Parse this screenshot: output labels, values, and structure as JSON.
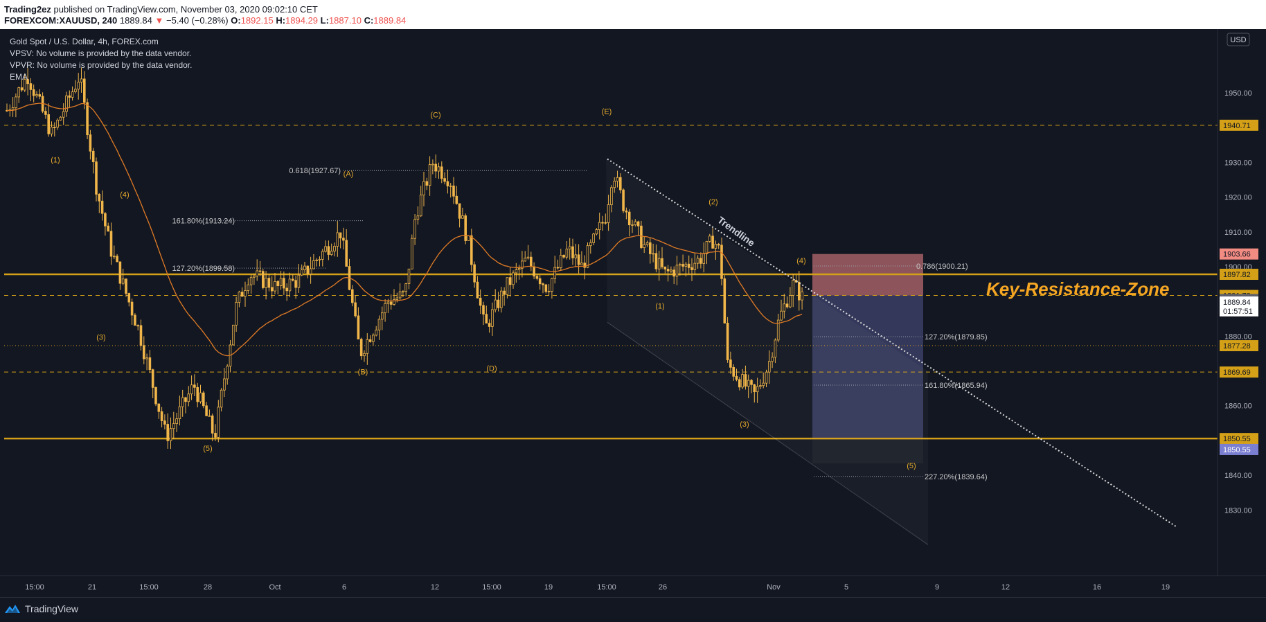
{
  "header": {
    "publisher": "Trading2ez",
    "published_text": "published on TradingView.com, November 03, 2020 09:02:10 CET",
    "symbol": "FOREXCOM:XAUUSD, 240",
    "last": "1889.84",
    "change": "−5.40 (−0.28%)",
    "o_label": "O:",
    "o": "1892.15",
    "h_label": "H:",
    "h": "1894.29",
    "l_label": "L:",
    "l": "1887.10",
    "c_label": "C:",
    "c": "1889.84"
  },
  "legend": {
    "title": "Gold Spot / U.S. Dollar, 4h, FOREX.com",
    "vpsv": "VPSV: No volume is provided by the data vendor.",
    "vpvr": "VPVR: No volume is provided by the data vendor.",
    "ema": "EMA"
  },
  "currency_badge": "USD",
  "footer": {
    "brand": "TradingView",
    "icon": "tradingview-logo-icon"
  },
  "colors": {
    "background": "#131722",
    "candle": "#f0b64a",
    "ema": "#e07b25",
    "level": "#d4a017",
    "stop_zone": "#f2888a",
    "target_zone": "#7b7fd1",
    "zone_text": "#f5a623",
    "trendline": "#d9d9d9"
  },
  "chart_data": {
    "type": "candlestick",
    "symbol": "XAUUSD",
    "interval": "4h",
    "ylim": [
      1821,
      1960
    ],
    "y_ticks": [
      1830,
      1840,
      1850,
      1860,
      1870,
      1880,
      1890,
      1900,
      1910,
      1920,
      1930,
      1950
    ],
    "x_ticks": [
      "15:00",
      "21",
      "15:00",
      "28",
      "Oct",
      "6",
      "12",
      "15:00",
      "19",
      "15:00",
      "26",
      "Nov",
      "5",
      "9",
      "12",
      "16",
      "19"
    ],
    "solid_levels": [
      1897.82,
      1850.55
    ],
    "dashed_levels": [
      1940.71,
      1891.73,
      1869.69
    ],
    "dotted_levels": [
      1877.28
    ],
    "price_labels": [
      {
        "value": "1940.71",
        "price": 1940.71,
        "style": "gold"
      },
      {
        "value": "1903.66",
        "price": 1903.66,
        "style": "red"
      },
      {
        "value": "1897.82",
        "price": 1897.82,
        "style": "gold"
      },
      {
        "value": "1891.73",
        "price": 1891.73,
        "style": "gold"
      },
      {
        "value": "1890.56",
        "price": 1890.56,
        "style": "gray"
      },
      {
        "value": "1889.84",
        "price": 1889.84,
        "style": "white"
      },
      {
        "value": "01:57:51",
        "price": 1887.3,
        "style": "white"
      },
      {
        "value": "1877.28",
        "price": 1877.28,
        "style": "gold"
      },
      {
        "value": "1869.69",
        "price": 1869.69,
        "style": "gold"
      },
      {
        "value": "1850.55",
        "price": 1850.55,
        "style": "gold"
      },
      {
        "value": "1850.55",
        "price": 1847.4,
        "style": "purple"
      }
    ],
    "annotation": "Key-Resistance-Zone",
    "trendline_label": "Trendline",
    "fib_labels": [
      {
        "text": "0.618(1927.67)",
        "price": 1927.67
      },
      {
        "text": "161.80%(1913.24)",
        "price": 1913.24
      },
      {
        "text": "127.20%(1899.58)",
        "price": 1899.58
      },
      {
        "text": "0.786(1900.21)",
        "price": 1900.21
      },
      {
        "text": "127.20%(1879.85)",
        "price": 1879.85
      },
      {
        "text": "161.80%(1865.94)",
        "price": 1865.94
      },
      {
        "text": "227.20%(1839.64)",
        "price": 1839.64
      }
    ],
    "wave_labels": [
      "(1)",
      "(4)",
      "(3)",
      "(5)",
      "(A)",
      "(B)",
      "(C)",
      "(D)",
      "(E)",
      "(2)",
      "(1)",
      "(3)",
      "(4)",
      "(5)"
    ],
    "position": {
      "entry": 1891.73,
      "stop": 1903.66,
      "target": 1850.55
    },
    "ohlc_last": {
      "o": 1892.15,
      "h": 1894.29,
      "l": 1887.1,
      "c": 1889.84
    }
  }
}
